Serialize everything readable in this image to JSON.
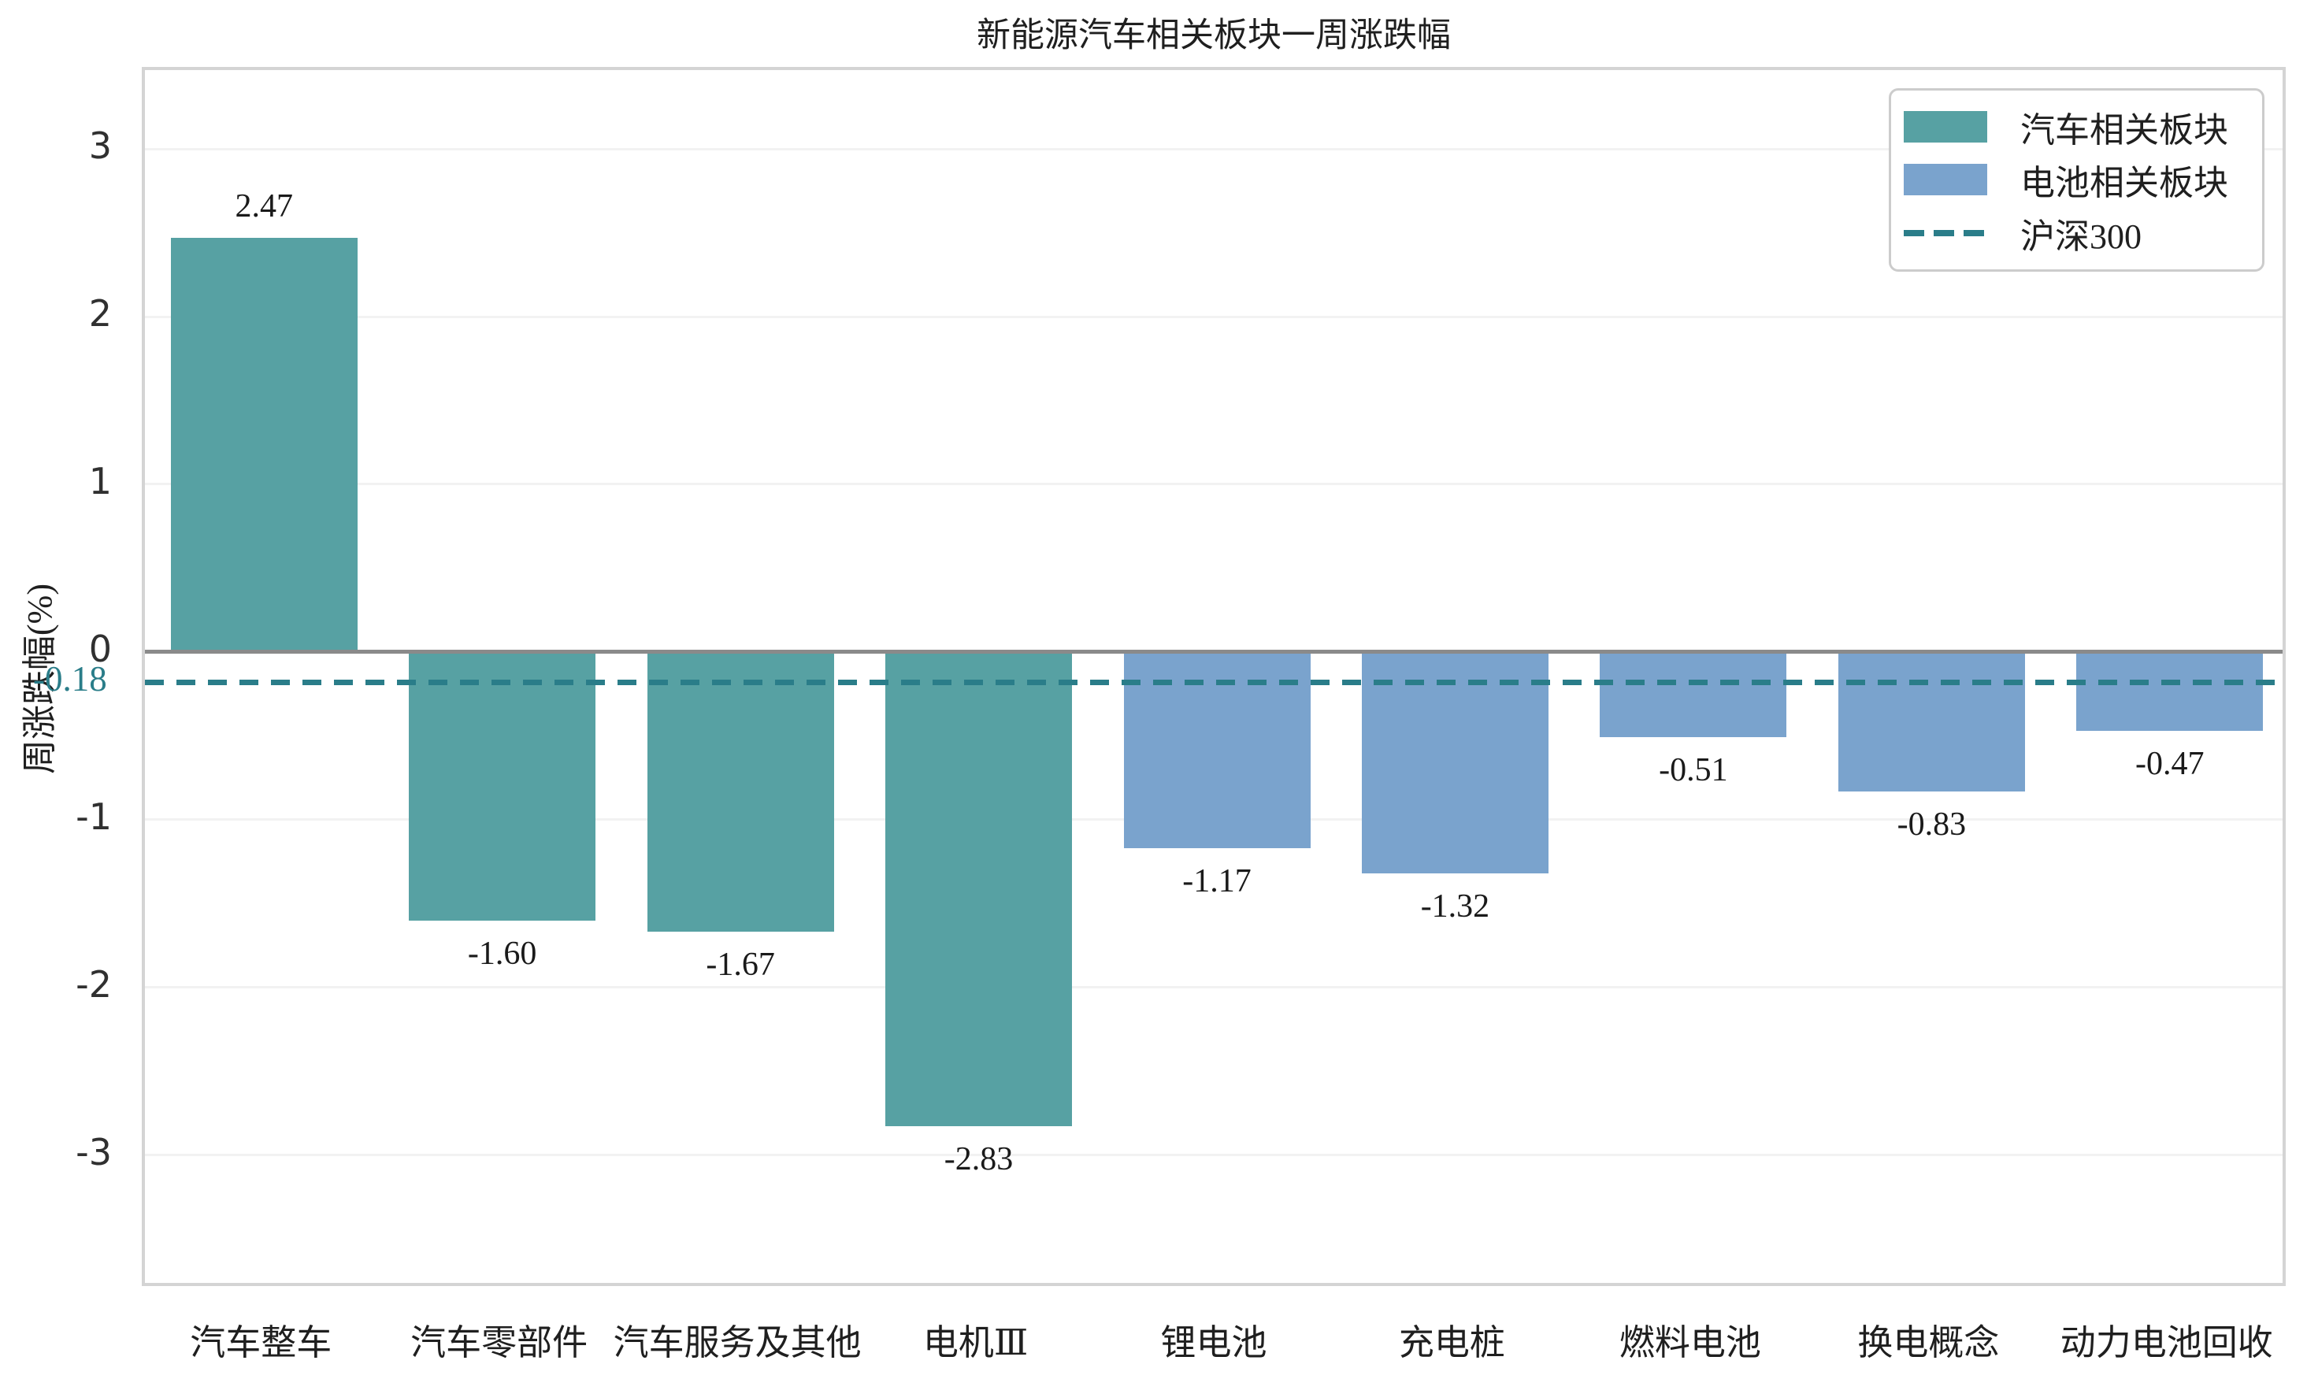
{
  "chart": {
    "title": "新能源汽车相关板块一周涨跌幅",
    "ylabel": "周涨跌幅(%)"
  },
  "legend": {
    "items": [
      {
        "label": "汽车相关板块",
        "swatch": "rect",
        "color": "#57a1a3"
      },
      {
        "label": "电池相关板块",
        "swatch": "rect",
        "color": "#7aa3cd"
      },
      {
        "label": "沪深300",
        "swatch": "dashed-line",
        "color": "#2a7d89"
      }
    ]
  },
  "colors": {
    "auto_sector": "#57a1a3",
    "battery_sector": "#7aa3cd",
    "reference_line": "#2a7d89",
    "zero_line": "#8a8a8a",
    "gridline": "#f2f2f2",
    "plot_border": "#d4d4d4"
  },
  "chart_data": {
    "type": "bar",
    "title": "新能源汽车相关板块一周涨跌幅",
    "ylabel": "周涨跌幅(%)",
    "xlabel": "",
    "categories": [
      "汽车整车",
      "汽车零部件",
      "汽车服务及其他",
      "电机Ⅲ",
      "锂电池",
      "充电桩",
      "燃料电池",
      "换电概念",
      "动力电池回收"
    ],
    "values": [
      2.47,
      -1.6,
      -1.67,
      -2.83,
      -1.17,
      -1.32,
      -0.51,
      -0.83,
      -0.47
    ],
    "bar_labels": [
      "2.47",
      "-1.60",
      "-1.67",
      "-2.83",
      "-1.17",
      "-1.32",
      "-0.51",
      "-0.83",
      "-0.47"
    ],
    "series": [
      {
        "name": "汽车相关板块",
        "color": "#57a1a3",
        "category_indices": [
          0,
          1,
          2,
          3
        ]
      },
      {
        "name": "电池相关板块",
        "color": "#7aa3cd",
        "category_indices": [
          4,
          5,
          6,
          7,
          8
        ]
      }
    ],
    "reference_line": {
      "name": "沪深300",
      "value": -0.18,
      "label": "-0.18",
      "color": "#2a7d89",
      "style": "dashed"
    },
    "yticks": [
      3,
      2,
      1,
      0,
      -1,
      -2,
      -3
    ],
    "ylim": [
      -3.8,
      3.47
    ],
    "grid": "horizontal",
    "legend_position": "top-right"
  }
}
